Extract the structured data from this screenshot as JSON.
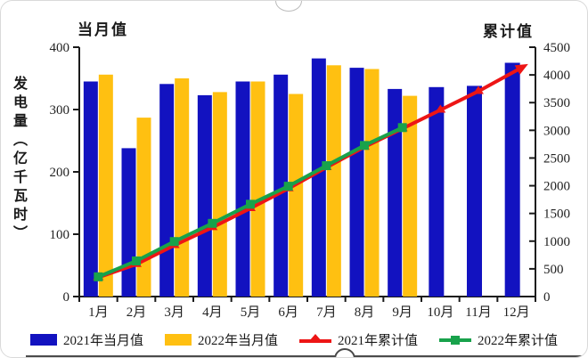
{
  "chart_data": {
    "type": "bar+line combo",
    "title_left": "当月值",
    "title_right": "累计值",
    "ylabel": "发电量（亿千瓦时）",
    "categories": [
      "1月",
      "2月",
      "3月",
      "4月",
      "5月",
      "6月",
      "7月",
      "8月",
      "9月",
      "10月",
      "11月",
      "12月"
    ],
    "left_axis": {
      "min": 0,
      "max": 400,
      "step": 100,
      "labels": [
        "0",
        "100",
        "200",
        "300",
        "400"
      ]
    },
    "right_axis": {
      "min": 0,
      "max": 4500,
      "step": 500,
      "labels": [
        "0",
        "500",
        "1000",
        "1500",
        "2000",
        "2500",
        "3000",
        "3500",
        "4000",
        "4500"
      ]
    },
    "grid": false,
    "legend_position": "bottom",
    "series": [
      {
        "name": "2021年当月值",
        "type": "bar",
        "axis": "left",
        "color": "#1212c0",
        "marker": "rect",
        "values": [
          345,
          238,
          341,
          323,
          345,
          356,
          382,
          367,
          333,
          336,
          338,
          375
        ]
      },
      {
        "name": "2022年当月值",
        "type": "bar",
        "axis": "left",
        "color": "#ffc011",
        "marker": "rect",
        "values": [
          356,
          287,
          350,
          328,
          345,
          325,
          371,
          365,
          322,
          null,
          null,
          null
        ]
      },
      {
        "name": "2021年累计值",
        "type": "line",
        "axis": "right",
        "color": "#ed1515",
        "marker": "triangle",
        "arrow_end": true,
        "values": [
          345,
          583,
          924,
          1247,
          1592,
          1948,
          2331,
          2698,
          3031,
          3367,
          3705,
          4080
        ]
      },
      {
        "name": "2022年累计值",
        "type": "line",
        "axis": "right",
        "color": "#18a24b",
        "marker": "square",
        "arrow_end": false,
        "values": [
          356,
          643,
          993,
          1321,
          1666,
          1991,
          2362,
          2727,
          3049,
          null,
          null,
          null
        ]
      }
    ],
    "axis_color": "#1a1a1a",
    "tick_label_color": "#222222"
  }
}
